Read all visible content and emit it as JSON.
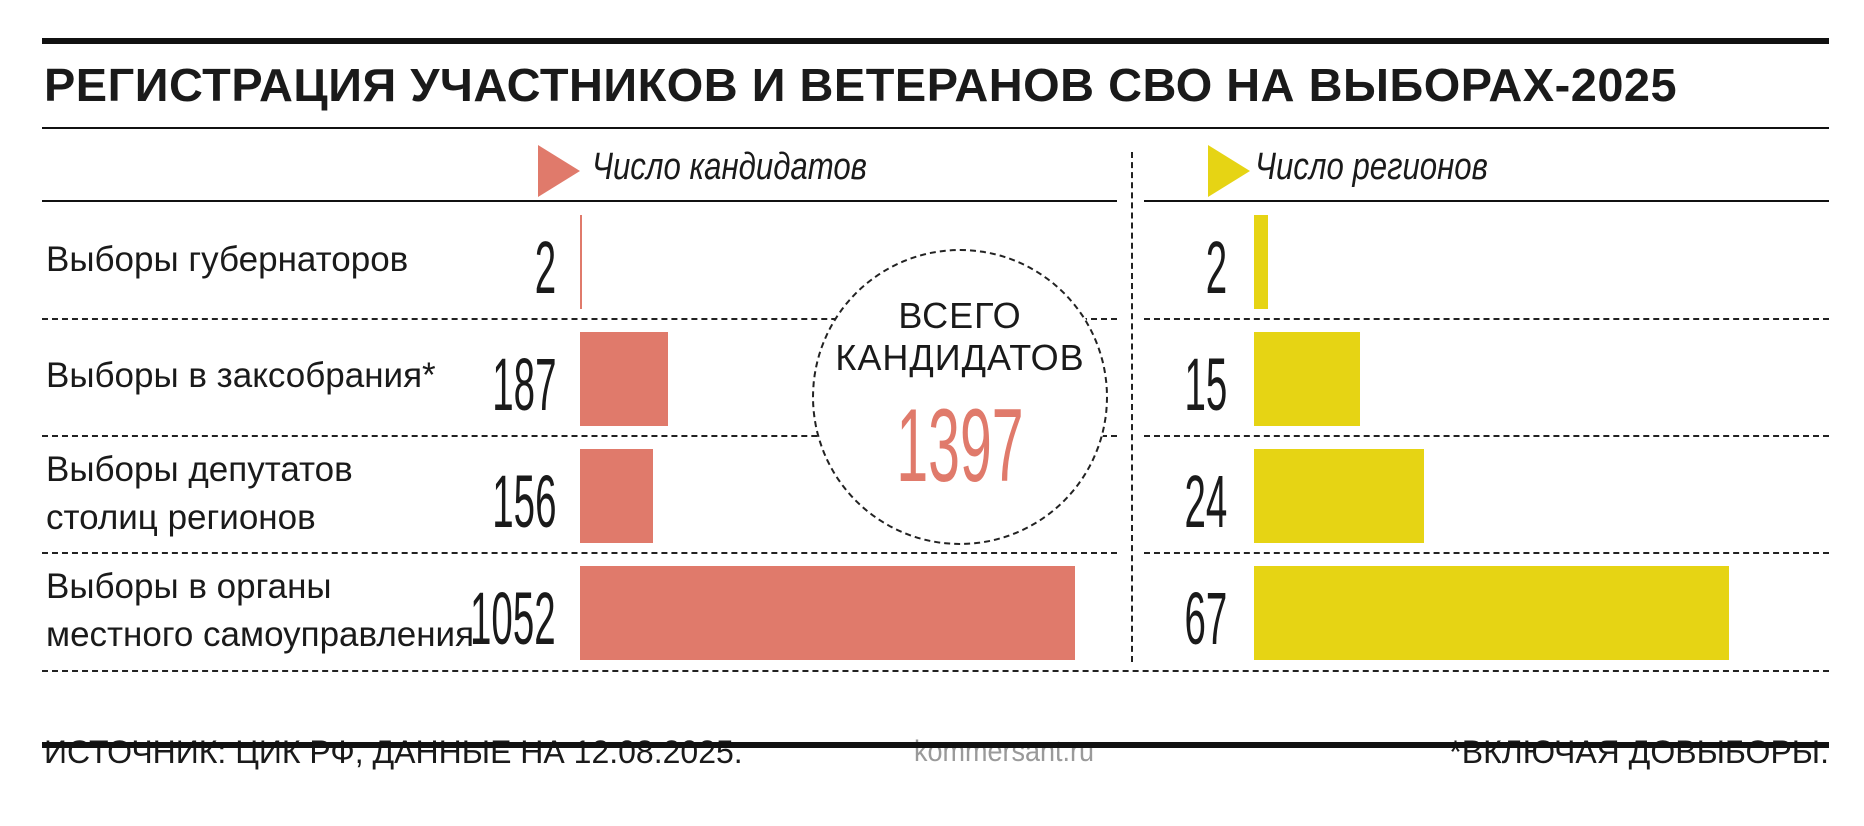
{
  "title": "РЕГИСТРАЦИЯ УЧАСТНИКОВ И ВЕТЕРАНОВ СВО НА ВЫБОРАХ-2025",
  "colors": {
    "candidates": "#e07a6b",
    "regions": "#e6d414",
    "text": "#1a1a1a",
    "link": "#9a9a9a"
  },
  "legend": {
    "candidates": "Число кандидатов",
    "regions": "Число регионов"
  },
  "total": {
    "label_line1": "ВСЕГО",
    "label_line2": "КАНДИДАТОВ",
    "value": "1397"
  },
  "rows": [
    {
      "label_line1": "Выборы губернаторов",
      "label_line2": ""
    },
    {
      "label_line1": "Выборы в заксобрания*",
      "label_line2": ""
    },
    {
      "label_line1": "Выборы депутатов",
      "label_line2": "столиц регионов"
    },
    {
      "label_line1": "Выборы в органы",
      "label_line2": "местного самоуправления"
    }
  ],
  "footer": {
    "source": "ИСТОЧНИК: ЦИК РФ, ДАННЫЕ НА 12.08.2025.",
    "site": "kommersant.ru",
    "note": "*ВКЛЮЧАЯ ДОВЫБОРЫ."
  },
  "chart_data": [
    {
      "type": "bar",
      "orientation": "horizontal",
      "categories": [
        "Выборы губернаторов",
        "Выборы в заксобрания*",
        "Выборы депутатов столиц регионов",
        "Выборы в органы местного самоуправления"
      ],
      "series": [
        {
          "name": "Число кандидатов",
          "values": [
            2,
            187,
            156,
            1052
          ]
        }
      ],
      "labels": [
        "2",
        "187",
        "156",
        "1052"
      ],
      "xlim": [
        0,
        1052
      ]
    },
    {
      "type": "bar",
      "orientation": "horizontal",
      "categories": [
        "Выборы губернаторов",
        "Выборы в заксобрания*",
        "Выборы депутатов столиц регионов",
        "Выборы в органы местного самоуправления"
      ],
      "series": [
        {
          "name": "Число регионов",
          "values": [
            2,
            15,
            24,
            67
          ]
        }
      ],
      "labels": [
        "2",
        "15",
        "24",
        "67"
      ],
      "xlim": [
        0,
        67
      ]
    }
  ]
}
